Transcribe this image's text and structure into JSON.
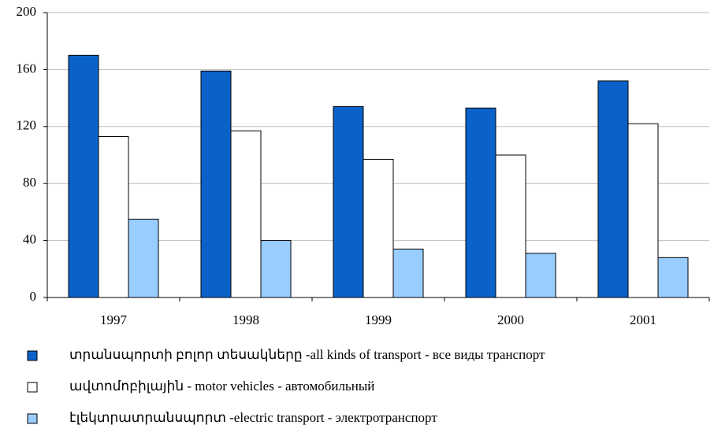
{
  "chart_data": {
    "type": "bar",
    "categories": [
      "1997",
      "1998",
      "1999",
      "2000",
      "2001"
    ],
    "series": [
      {
        "name": "տրանսպորտի բոլոր տեսակները -all kinds of transport - все виды транспорт",
        "color": "#0a62c9",
        "values": [
          170,
          159,
          134,
          133,
          152
        ]
      },
      {
        "name": "ավտոմոբիլային - motor vehicles - автомобильный",
        "color": "#ffffff",
        "values": [
          113,
          117,
          97,
          100,
          122
        ]
      },
      {
        "name": "էլեկտրատրանսպորտ -electric transport - электротранспорт",
        "color": "#99ccff",
        "values": [
          55,
          40,
          34,
          31,
          28
        ]
      }
    ],
    "ylim": [
      0,
      200
    ],
    "yticks": [
      0,
      40,
      80,
      120,
      160,
      200
    ],
    "grid": true
  }
}
